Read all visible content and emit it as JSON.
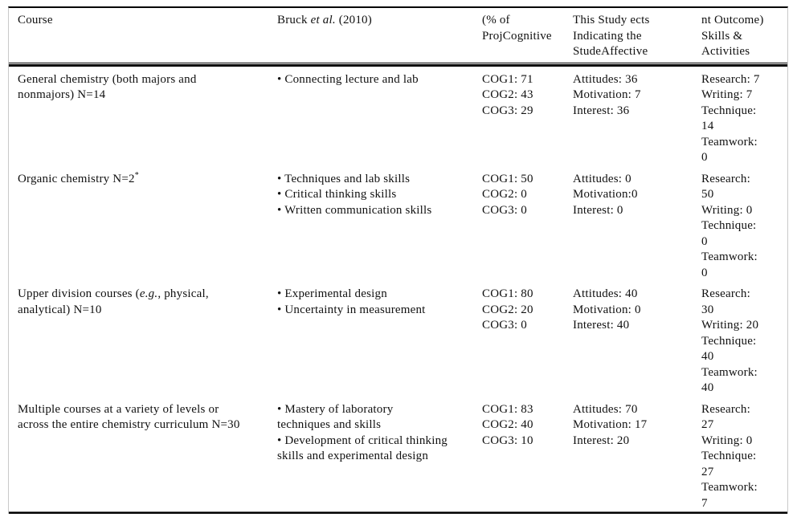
{
  "table": {
    "columns": [
      {
        "label": "Course"
      },
      {
        "label": "Bruck <i>et al.</i> (2010)"
      },
      {
        "label": "(% of\nProjCognitive"
      },
      {
        "label": "This Study ects\nIndicating the\nStudeAffective"
      },
      {
        "label": "nt Outcome)\nSkills &\nActivities"
      }
    ],
    "rows": [
      {
        "course": "General chemistry (both majors and\nnonmajors) N=14",
        "bruck": [
          "• Connecting lecture and lab"
        ],
        "cognitive": [
          "COG1: 71",
          "COG2: 43",
          "COG3: 29"
        ],
        "affective": [
          "Attitudes: 36",
          "Motivation: 7",
          "Interest: 36"
        ],
        "skills": [
          "Research: 7",
          "Writing: 7",
          "Technique:",
          "14",
          "Teamwork:",
          "0"
        ]
      },
      {
        "course": "Organic chemistry N=2<sup>*</sup>",
        "bruck": [
          "• Techniques and lab skills",
          "• Critical thinking skills",
          "• Written communication skills"
        ],
        "cognitive": [
          "COG1: 50",
          "COG2: 0",
          "COG3: 0"
        ],
        "affective": [
          "Attitudes: 0",
          "Motivation:0",
          "Interest: 0"
        ],
        "skills": [
          "Research:",
          "50",
          "Writing: 0",
          "Technique:",
          "0",
          "Teamwork:",
          "0"
        ]
      },
      {
        "course": "Upper division courses (<i>e.g.</i>, physical,\nanalytical) N=10",
        "bruck": [
          "• Experimental design",
          "• Uncertainty in measurement"
        ],
        "cognitive": [
          "COG1: 80",
          "COG2: 20",
          "COG3: 0"
        ],
        "affective": [
          "Attitudes: 40",
          "Motivation: 0",
          "Interest: 40"
        ],
        "skills": [
          "Research:",
          "30",
          "Writing: 20",
          "Technique:",
          "40",
          "Teamwork:",
          "40"
        ]
      },
      {
        "course": "Multiple courses at a variety of levels or\nacross the entire chemistry curriculum N=30",
        "bruck": [
          "• Mastery of laboratory",
          "techniques and skills",
          "• Development of critical thinking",
          "skills and experimental design"
        ],
        "cognitive": [
          "COG1: 83",
          "COG2: 40",
          "COG3: 10"
        ],
        "affective": [
          "Attitudes: 70",
          "Motivation: 17",
          "Interest: 20"
        ],
        "skills": [
          "Research:",
          "27",
          "Writing: 0",
          "Technique:",
          "27",
          "Teamwork:",
          "7"
        ]
      }
    ]
  }
}
